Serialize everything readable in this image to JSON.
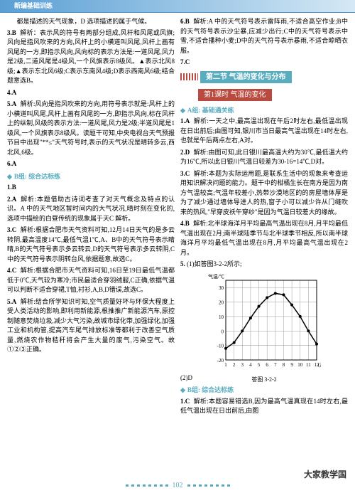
{
  "header": {
    "title": "新编基础训练"
  },
  "col_left": {
    "intro": "都是描述的天气现象，D 选项描述的属于气候。",
    "q3": {
      "num": "3.",
      "ans": "B",
      "text": "解析：表示风的符号有两部分组成,风杆和风尾或风旗;风向是指风吹来的方向,风杆上的小横道叫风尾,风杆上画有风尾的一方,即指示风向,风向标的表示方法是:一道风尾,风力是2级,二道风尾是4级风,一个风旗表示8级风。▲表示北风8级;▲表示东北风6级;C表示东南风4级;D表示西南风6级;结合题意选B。"
    },
    "q4": {
      "num": "4.",
      "ans": "A"
    },
    "q5": {
      "num": "5.",
      "ans": "A",
      "text": "解析:风向是指风吹来的方向,用符号表示就是:风杆上的小横道叫风尾,风杆上画有风尾的一方,即指示风向,标在风杆上的纵制,风级的表示方法:一道风尾,风力是2级;半道风尾是1级风,一个风旗表示8级风。读题干可知,中央电视台天气预报节目中出现\"**≤\"天气符号时,表示的天气状况是晴转多云,西北风,6级。"
    },
    "q6": {
      "num": "6.",
      "ans": "A"
    },
    "group_b": "B组: 综合达标练",
    "gb_q1": {
      "num": "1.",
      "ans": "B"
    },
    "gb_q2": {
      "num": "2.",
      "ans": "A",
      "text": "解析:本题借助古诗词考查了对天气概念及特点的认识。A 中的天气地区暂时间内的大气状况,晴时刻在变化的,选项中描绘的白昼传统的现象属于天C 解析。"
    },
    "gb_q3": {
      "num": "3.",
      "ans": "C",
      "text": "解析:根据合肥市天气资料可知,12月14日天气的是多云转阴,最高温度14℃,最低气温1℃,A、B中的天气符号表示睛晴,B的天气符号表示多云转云,D的天气符号表示多云转阴,C中的天气符号表示阴转台风,依据题意,故选C。"
    },
    "gb_q4": {
      "num": "4.",
      "ans": "C",
      "text": "解析:根据合肥市天气资料可知,16日至19日最低气温都低于0℃,天气较为寒冷;市民最适合穿羽绒服,C正确,依据气温可以判断不适合穿裙,T恤,衬衫,A,B,D错误,故选C。"
    },
    "gb_q5": {
      "num": "5.",
      "ans": "A",
      "text": "解析:结合所学知识可知,空气质量好坏与环保大程度上受人类活动的影响,即利用新能源,根推推广新能源汽车,原控制随意焚烧垃圾,减少大气污染,故城市绿化带,加强绿化,加强工业和机构管,提高汽车尾气排放标准等都利于改善空气质量,燃烧农作物秸秆将会产生大量的废气,污染空气。故①②③正确。"
    }
  },
  "col_right": {
    "q6": {
      "num": "6.",
      "ans": "B",
      "text": "解析:A 中的天气符号表示雷阵雨,不适合高空作业;B中的天气符号表示沙尘暴,应减少出行;C中的天气符号表示中雪,不适合播种小麦;D中的天气符号表示暴雨,不适合晾晒衣服。"
    },
    "q7": {
      "num": "7.",
      "ans": "C"
    },
    "section": {
      "title": "第二节 气温的变化与分布"
    },
    "lesson": "第1课时 气温的变化",
    "group_a": "A组: 基础通关练",
    "ga_q1": {
      "num": "1.",
      "ans": "A",
      "text": "解析:一天之中,最高温出现在午后2时左右,最低温出现在日出前后;由图可知,银川市当日最高气温出现在14时左右,也就是午后两点左右,A对。"
    },
    "ga_q2": {
      "num": "2.",
      "ans": "D",
      "text": "解析:由图可知,此日银川最高温大约为30℃,最低温大约为16℃,所以此日银川气温日较差为30-16=14℃,D对。"
    },
    "ga_q3": {
      "num": "3.",
      "ans": "C",
      "text": "解析:本题为实际运用题,是联系生活中的现象来考查运用知识解决问题的能力。题干中的柑橘生长在南方是因为南方气温较高;气温年较差小,热带沙漠地区的的房屋墙体厚是为了减少通过墙体导进人的热,窗子小可以减少许从门缝吹来的热风,\"早穿皮袄午穿纱\"是因为气温日较差大的缘故。"
    },
    "ga_q4": {
      "num": "4.",
      "ans": "B",
      "text": "解析:北半球海洋月平均最高气温出现在8月,月平均最低气温出现在2月;南半球陆季节与北半球季节相反,所以南半球海洋月平均最低气温出现在8月,月平均最高气温出现在2月。"
    },
    "ga_q5": {
      "num": "5.",
      "text": "(1)如答图3-2-2所示;"
    },
    "chart": {
      "type": "line",
      "ylabel": "气温/℃",
      "xlabel_suffix": "(月)",
      "x_ticks": [
        1,
        2,
        3,
        4,
        5,
        6,
        7,
        8,
        9,
        10,
        11,
        12
      ],
      "y_ticks": [
        -20,
        -10,
        0,
        10,
        20,
        30
      ],
      "ylim": [
        -20,
        35
      ],
      "data": [
        -12,
        -8,
        0,
        9,
        17,
        23,
        26,
        25,
        18,
        10,
        0,
        -9
      ],
      "line_color": "#000000",
      "marker": "circle",
      "marker_size": 2,
      "grid_color": "#999999",
      "background": "#ffffff",
      "caption": "答图 3-2-2"
    },
    "ga_q5_2": "(2)D",
    "group_b": "B组: 综合达标练",
    "gb_q1": {
      "num": "1.",
      "ans": "C",
      "text": "解析:本题容易错选B,因为最高气温真现在14时左右,最低气温出现在日出前后,由图"
    }
  },
  "page_number": "102",
  "watermark": "大家教学国"
}
